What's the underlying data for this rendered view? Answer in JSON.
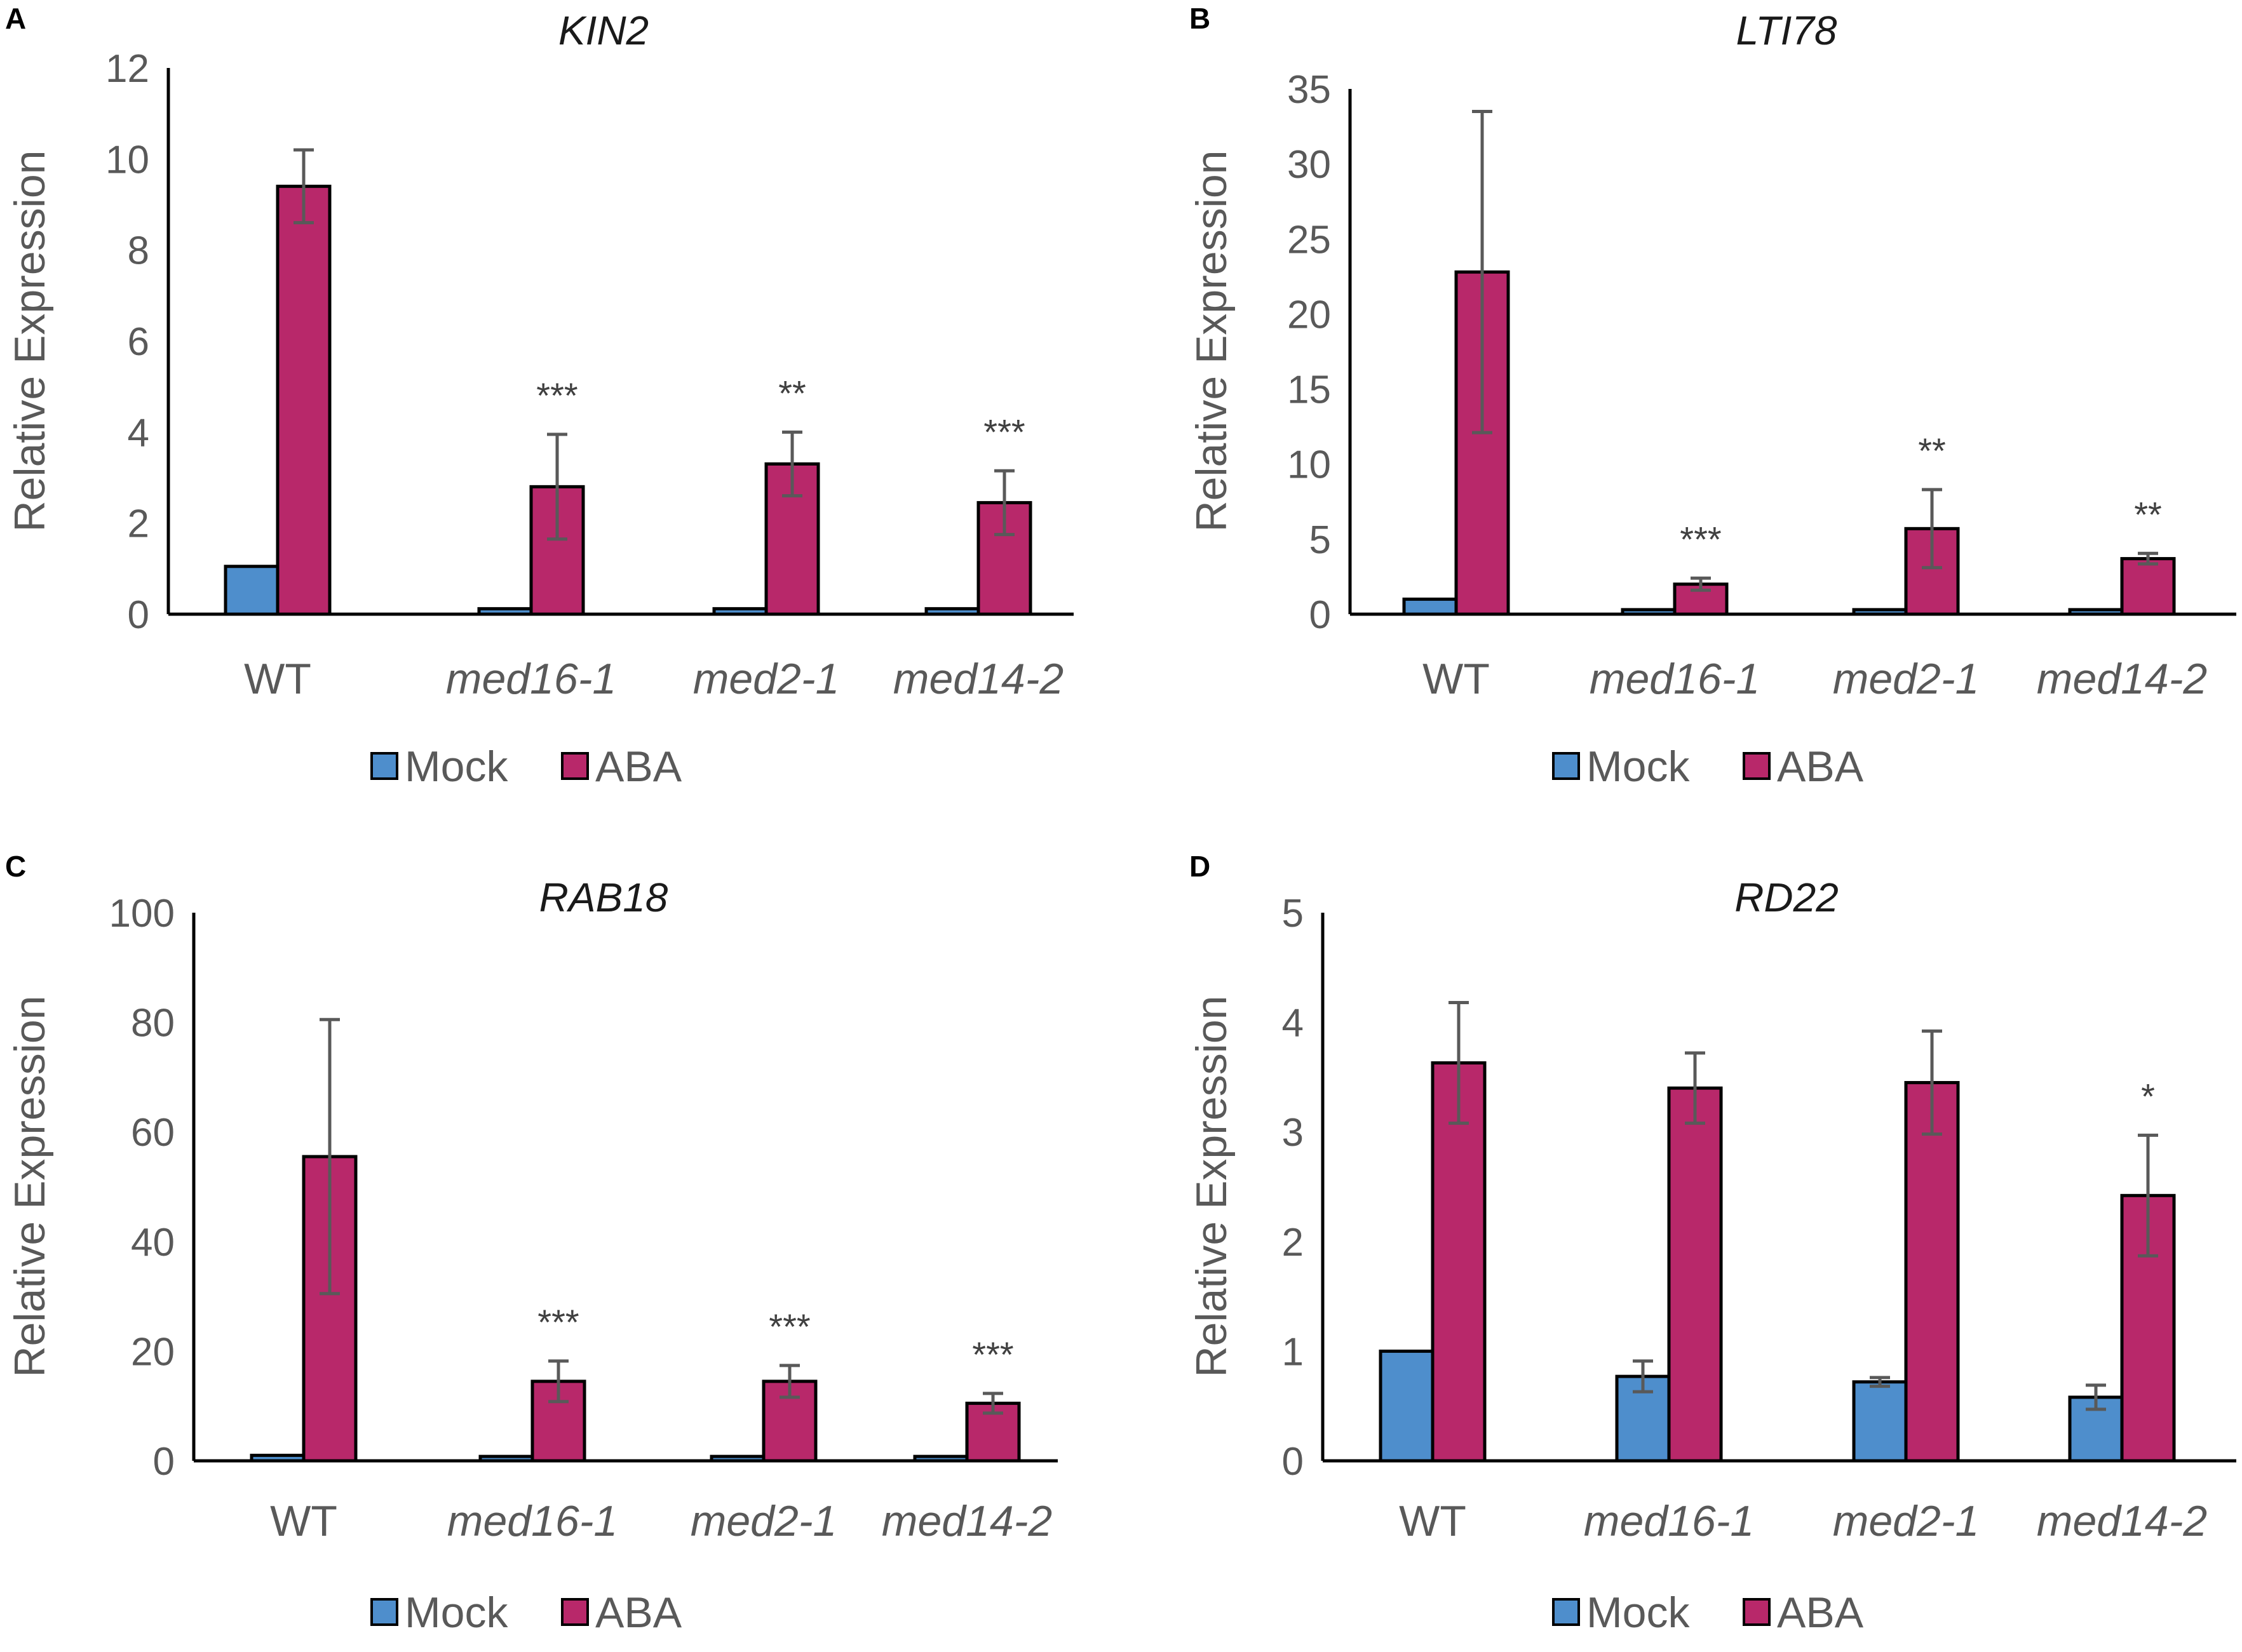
{
  "colors": {
    "mock": "#4E8ECC",
    "aba": "#B8286A",
    "axis": "#000000",
    "error": "#595959",
    "text": "#595959"
  },
  "chart_data": [
    {
      "panel": "A",
      "type": "bar",
      "title": "KIN2",
      "ylabel": "Relative Expression",
      "xlabel": "",
      "ylim": [
        0,
        12
      ],
      "yticks": [
        0,
        2,
        4,
        6,
        8,
        10,
        12
      ],
      "categories": [
        "WT",
        "med16-1",
        "med2-1",
        "med14-2"
      ],
      "series": [
        {
          "name": "Mock",
          "values": [
            1.05,
            0.12,
            0.12,
            0.12
          ],
          "errors": [
            0.0,
            0.0,
            0.0,
            0.0
          ]
        },
        {
          "name": "ABA",
          "values": [
            9.4,
            2.8,
            3.3,
            2.45
          ],
          "errors": [
            0.8,
            1.15,
            0.7,
            0.7
          ]
        }
      ],
      "significance": [
        "",
        "***",
        "**",
        "***"
      ],
      "legend": [
        "Mock",
        "ABA"
      ]
    },
    {
      "panel": "B",
      "type": "bar",
      "title": "LTI78",
      "ylabel": "Relative Expression",
      "xlabel": "",
      "ylim": [
        0,
        35
      ],
      "yticks": [
        0,
        5,
        10,
        15,
        20,
        25,
        30,
        35
      ],
      "categories": [
        "WT",
        "med16-1",
        "med2-1",
        "med14-2"
      ],
      "series": [
        {
          "name": "Mock",
          "values": [
            1.0,
            0.3,
            0.3,
            0.3
          ],
          "errors": [
            0.0,
            0.0,
            0.0,
            0.0
          ]
        },
        {
          "name": "ABA",
          "values": [
            22.8,
            2.0,
            5.7,
            3.7
          ],
          "errors": [
            10.7,
            0.4,
            2.6,
            0.35
          ]
        }
      ],
      "significance": [
        "",
        "***",
        "**",
        "**"
      ],
      "legend": [
        "Mock",
        "ABA"
      ]
    },
    {
      "panel": "C",
      "type": "bar",
      "title": "RAB18",
      "ylabel": "Relative Expression",
      "xlabel": "",
      "ylim": [
        0,
        100
      ],
      "yticks": [
        0,
        20,
        40,
        60,
        80,
        100
      ],
      "categories": [
        "WT",
        "med16-1",
        "med2-1",
        "med14-2"
      ],
      "series": [
        {
          "name": "Mock",
          "values": [
            1.0,
            0.8,
            0.8,
            0.8
          ],
          "errors": [
            0.0,
            0.0,
            0.0,
            0.0
          ]
        },
        {
          "name": "ABA",
          "values": [
            55.5,
            14.5,
            14.5,
            10.5
          ],
          "errors": [
            25.0,
            3.7,
            2.9,
            1.8
          ]
        }
      ],
      "significance": [
        "",
        "***",
        "***",
        "***"
      ],
      "legend": [
        "Mock",
        "ABA"
      ]
    },
    {
      "panel": "D",
      "type": "bar",
      "title": "RD22",
      "ylabel": "Relative Expression",
      "xlabel": "",
      "ylim": [
        0,
        5
      ],
      "yticks": [
        0,
        1,
        2,
        3,
        4,
        5
      ],
      "categories": [
        "WT",
        "med16-1",
        "med2-1",
        "med14-2"
      ],
      "series": [
        {
          "name": "Mock",
          "values": [
            1.0,
            0.77,
            0.72,
            0.58
          ],
          "errors": [
            0.0,
            0.14,
            0.04,
            0.11
          ]
        },
        {
          "name": "ABA",
          "values": [
            3.63,
            3.4,
            3.45,
            2.42
          ],
          "errors": [
            0.55,
            0.32,
            0.47,
            0.55
          ]
        }
      ],
      "significance": [
        "",
        "",
        "",
        "*"
      ],
      "legend": [
        "Mock",
        "ABA"
      ]
    }
  ]
}
